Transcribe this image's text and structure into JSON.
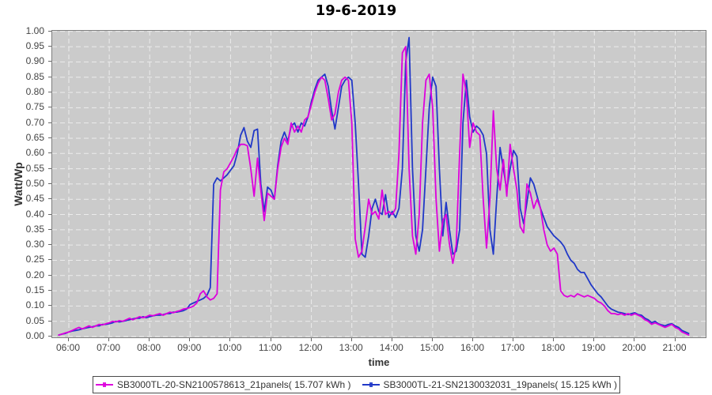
{
  "title": "19-6-2019",
  "x_axis": {
    "label": "time",
    "ticks": [
      "06:00",
      "07:00",
      "08:00",
      "09:00",
      "10:00",
      "11:00",
      "12:00",
      "13:00",
      "14:00",
      "15:00",
      "16:00",
      "17:00",
      "18:00",
      "19:00",
      "20:00",
      "21:00"
    ]
  },
  "y_axis": {
    "label": "Watt/Wp",
    "ticks": [
      "1.00",
      "0.95",
      "0.90",
      "0.85",
      "0.80",
      "0.75",
      "0.70",
      "0.65",
      "0.60",
      "0.55",
      "0.50",
      "0.45",
      "0.40",
      "0.35",
      "0.30",
      "0.25",
      "0.20",
      "0.15",
      "0.10",
      "0.05",
      "0.00"
    ]
  },
  "legend": {
    "items": [
      {
        "label": "SB3000TL-20-SN2100578613_21panels( 15.707 kWh )",
        "color": "#dd00dd"
      },
      {
        "label": "SB3000TL-21-SN2130032031_19panels( 15.125 kWh )",
        "color": "#2038c8"
      }
    ]
  },
  "colors": {
    "plot_background": "#cbcbcb",
    "gridline": "#ececec",
    "frame": "#7e7e7e",
    "series_magenta": "#dd00dd",
    "series_blue": "#2038c8"
  },
  "chart_data": {
    "type": "line",
    "title": "19-6-2019",
    "xlabel": "time",
    "ylabel": "Watt/Wp",
    "ylim": [
      0.0,
      1.0
    ],
    "y_tick_step": 0.05,
    "x_axis_hours": [
      6,
      21
    ],
    "grid": "white dashed horizontal and vertical on gray background",
    "legend_position": "bottom",
    "x_time": {
      "start": "05:45",
      "step_minutes": 5,
      "count": 188
    },
    "series": [
      {
        "name": "SB3000TL-20-SN2100578613_21panels( 15.707 kWh )",
        "energy_kwh_shown": "15.707 kWh",
        "color": "#dd00dd",
        "values": [
          0.005,
          0.008,
          0.012,
          0.015,
          0.02,
          0.025,
          0.03,
          0.025,
          0.03,
          0.035,
          0.03,
          0.035,
          0.04,
          0.038,
          0.042,
          0.045,
          0.05,
          0.048,
          0.052,
          0.05,
          0.055,
          0.06,
          0.055,
          0.06,
          0.065,
          0.062,
          0.065,
          0.07,
          0.068,
          0.072,
          0.075,
          0.07,
          0.075,
          0.08,
          0.078,
          0.082,
          0.085,
          0.09,
          0.092,
          0.095,
          0.1,
          0.11,
          0.14,
          0.15,
          0.13,
          0.12,
          0.125,
          0.14,
          0.48,
          0.54,
          0.55,
          0.57,
          0.59,
          0.615,
          0.63,
          0.63,
          0.625,
          0.55,
          0.46,
          0.585,
          0.48,
          0.38,
          0.47,
          0.46,
          0.45,
          0.55,
          0.62,
          0.65,
          0.63,
          0.7,
          0.67,
          0.69,
          0.67,
          0.71,
          0.72,
          0.76,
          0.8,
          0.83,
          0.85,
          0.84,
          0.78,
          0.71,
          0.73,
          0.8,
          0.84,
          0.85,
          0.84,
          0.7,
          0.32,
          0.26,
          0.28,
          0.36,
          0.45,
          0.4,
          0.41,
          0.385,
          0.48,
          0.4,
          0.41,
          0.4,
          0.42,
          0.6,
          0.93,
          0.95,
          0.55,
          0.33,
          0.27,
          0.4,
          0.7,
          0.84,
          0.86,
          0.75,
          0.45,
          0.28,
          0.38,
          0.4,
          0.3,
          0.24,
          0.3,
          0.6,
          0.86,
          0.8,
          0.62,
          0.7,
          0.67,
          0.66,
          0.45,
          0.29,
          0.45,
          0.74,
          0.55,
          0.48,
          0.58,
          0.46,
          0.63,
          0.55,
          0.48,
          0.36,
          0.34,
          0.5,
          0.47,
          0.42,
          0.45,
          0.42,
          0.35,
          0.3,
          0.28,
          0.29,
          0.27,
          0.15,
          0.135,
          0.13,
          0.135,
          0.13,
          0.14,
          0.135,
          0.13,
          0.135,
          0.13,
          0.125,
          0.115,
          0.11,
          0.1,
          0.085,
          0.075,
          0.075,
          0.072,
          0.075,
          0.07,
          0.075,
          0.07,
          0.075,
          0.07,
          0.065,
          0.055,
          0.05,
          0.04,
          0.045,
          0.04,
          0.035,
          0.03,
          0.035,
          0.04,
          0.03,
          0.025,
          0.015,
          0.01,
          0.005
        ]
      },
      {
        "name": "SB3000TL-21-SN2130032031_19panels( 15.125 kWh )",
        "energy_kwh_shown": "15.125 kWh",
        "color": "#2038c8",
        "values": [
          0.005,
          0.008,
          0.01,
          0.015,
          0.018,
          0.02,
          0.022,
          0.025,
          0.028,
          0.03,
          0.032,
          0.035,
          0.035,
          0.04,
          0.04,
          0.042,
          0.045,
          0.05,
          0.048,
          0.05,
          0.052,
          0.055,
          0.058,
          0.06,
          0.06,
          0.065,
          0.062,
          0.065,
          0.068,
          0.07,
          0.07,
          0.072,
          0.075,
          0.075,
          0.08,
          0.08,
          0.082,
          0.085,
          0.09,
          0.105,
          0.11,
          0.115,
          0.12,
          0.125,
          0.135,
          0.16,
          0.5,
          0.52,
          0.51,
          0.52,
          0.53,
          0.545,
          0.56,
          0.6,
          0.66,
          0.685,
          0.64,
          0.62,
          0.675,
          0.68,
          0.5,
          0.41,
          0.49,
          0.48,
          0.45,
          0.56,
          0.64,
          0.67,
          0.64,
          0.69,
          0.7,
          0.67,
          0.7,
          0.69,
          0.72,
          0.77,
          0.81,
          0.84,
          0.85,
          0.86,
          0.82,
          0.74,
          0.68,
          0.75,
          0.82,
          0.84,
          0.85,
          0.84,
          0.7,
          0.5,
          0.27,
          0.26,
          0.33,
          0.42,
          0.45,
          0.41,
          0.4,
          0.465,
          0.39,
          0.41,
          0.39,
          0.42,
          0.55,
          0.9,
          0.98,
          0.55,
          0.33,
          0.28,
          0.35,
          0.55,
          0.75,
          0.85,
          0.82,
          0.55,
          0.33,
          0.44,
          0.35,
          0.27,
          0.28,
          0.35,
          0.7,
          0.84,
          0.72,
          0.67,
          0.69,
          0.68,
          0.66,
          0.6,
          0.35,
          0.27,
          0.45,
          0.62,
          0.55,
          0.48,
          0.55,
          0.61,
          0.59,
          0.42,
          0.37,
          0.44,
          0.52,
          0.5,
          0.46,
          0.42,
          0.39,
          0.36,
          0.345,
          0.33,
          0.32,
          0.31,
          0.295,
          0.27,
          0.25,
          0.24,
          0.22,
          0.21,
          0.21,
          0.19,
          0.17,
          0.155,
          0.14,
          0.13,
          0.115,
          0.1,
          0.09,
          0.085,
          0.08,
          0.078,
          0.075,
          0.072,
          0.075,
          0.078,
          0.072,
          0.07,
          0.06,
          0.055,
          0.045,
          0.05,
          0.042,
          0.038,
          0.035,
          0.04,
          0.042,
          0.035,
          0.03,
          0.02,
          0.015,
          0.01
        ]
      }
    ]
  }
}
